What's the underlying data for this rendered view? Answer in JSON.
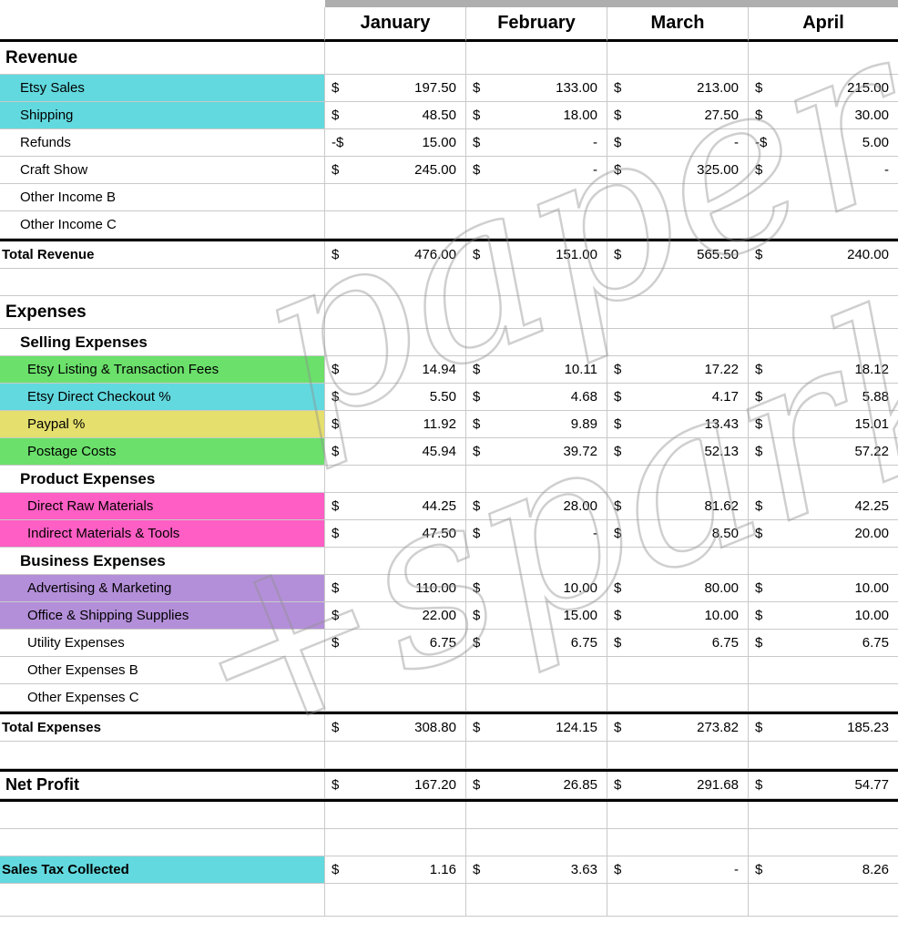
{
  "columns": [
    "January",
    "February",
    "March",
    "April"
  ],
  "colors": {
    "cyan": "#62d9de",
    "green": "#6be06b",
    "yellow": "#e5df6d",
    "pink": "#ff5ec4",
    "purple": "#b48fd9"
  },
  "watermark": {
    "line1": "paper",
    "line2": "+spark"
  },
  "rows": [
    {
      "label": "Revenue",
      "style": "section"
    },
    {
      "label": "Etsy Sales",
      "style": "item",
      "hl": "cyan",
      "cells": [
        [
          "$",
          "197.50"
        ],
        [
          "$",
          "133.00"
        ],
        [
          "$",
          "213.00"
        ],
        [
          "$",
          "215.00"
        ]
      ]
    },
    {
      "label": "Shipping",
      "style": "item",
      "hl": "cyan",
      "cells": [
        [
          "$",
          "48.50"
        ],
        [
          "$",
          "18.00"
        ],
        [
          "$",
          "27.50"
        ],
        [
          "$",
          "30.00"
        ]
      ]
    },
    {
      "label": "Refunds",
      "style": "item",
      "cells": [
        [
          "-$",
          "15.00"
        ],
        [
          "$",
          "-"
        ],
        [
          "$",
          "-"
        ],
        [
          "-$",
          "5.00"
        ]
      ]
    },
    {
      "label": "Craft Show",
      "style": "item",
      "cells": [
        [
          "$",
          "245.00"
        ],
        [
          "$",
          "-"
        ],
        [
          "$",
          "325.00"
        ],
        [
          "$",
          "-"
        ]
      ]
    },
    {
      "label": "Other Income B",
      "style": "item"
    },
    {
      "label": "Other Income C",
      "style": "item"
    },
    {
      "label": "Total Revenue",
      "style": "total",
      "top": true,
      "cells": [
        [
          "$",
          "476.00"
        ],
        [
          "$",
          "151.00"
        ],
        [
          "$",
          "565.50"
        ],
        [
          "$",
          "240.00"
        ]
      ]
    },
    {
      "label": "",
      "style": "blank"
    },
    {
      "label": "Expenses",
      "style": "section"
    },
    {
      "label": "Selling Expenses",
      "style": "subsection"
    },
    {
      "label": "Etsy Listing & Transaction Fees",
      "style": "item2",
      "hl": "green",
      "cells": [
        [
          "$",
          "14.94"
        ],
        [
          "$",
          "10.11"
        ],
        [
          "$",
          "17.22"
        ],
        [
          "$",
          "18.12"
        ]
      ]
    },
    {
      "label": "Etsy Direct Checkout %",
      "style": "item2",
      "hl": "cyan",
      "cells": [
        [
          "$",
          "5.50"
        ],
        [
          "$",
          "4.68"
        ],
        [
          "$",
          "4.17"
        ],
        [
          "$",
          "5.88"
        ]
      ]
    },
    {
      "label": "Paypal %",
      "style": "item2",
      "hl": "yellow",
      "cells": [
        [
          "$",
          "11.92"
        ],
        [
          "$",
          "9.89"
        ],
        [
          "$",
          "13.43"
        ],
        [
          "$",
          "15.01"
        ]
      ]
    },
    {
      "label": "Postage Costs",
      "style": "item2",
      "hl": "green",
      "cells": [
        [
          "$",
          "45.94"
        ],
        [
          "$",
          "39.72"
        ],
        [
          "$",
          "52.13"
        ],
        [
          "$",
          "57.22"
        ]
      ]
    },
    {
      "label": "Product Expenses",
      "style": "subsection"
    },
    {
      "label": "Direct Raw Materials",
      "style": "item2",
      "hl": "pink",
      "cells": [
        [
          "$",
          "44.25"
        ],
        [
          "$",
          "28.00"
        ],
        [
          "$",
          "81.62"
        ],
        [
          "$",
          "42.25"
        ]
      ]
    },
    {
      "label": "Indirect Materials & Tools",
      "style": "item2",
      "hl": "pink",
      "cells": [
        [
          "$",
          "47.50"
        ],
        [
          "$",
          "-"
        ],
        [
          "$",
          "8.50"
        ],
        [
          "$",
          "20.00"
        ]
      ]
    },
    {
      "label": "Business Expenses",
      "style": "subsection"
    },
    {
      "label": "Advertising & Marketing",
      "style": "item2",
      "hl": "purple",
      "cells": [
        [
          "$",
          "110.00"
        ],
        [
          "$",
          "10.00"
        ],
        [
          "$",
          "80.00"
        ],
        [
          "$",
          "10.00"
        ]
      ]
    },
    {
      "label": "Office & Shipping Supplies",
      "style": "item2",
      "hl": "purple",
      "cells": [
        [
          "$",
          "22.00"
        ],
        [
          "$",
          "15.00"
        ],
        [
          "$",
          "10.00"
        ],
        [
          "$",
          "10.00"
        ]
      ]
    },
    {
      "label": "Utility Expenses",
      "style": "item2",
      "cells": [
        [
          "$",
          "6.75"
        ],
        [
          "$",
          "6.75"
        ],
        [
          "$",
          "6.75"
        ],
        [
          "$",
          "6.75"
        ]
      ]
    },
    {
      "label": "Other Expenses B",
      "style": "item2"
    },
    {
      "label": "Other Expenses C",
      "style": "item2"
    },
    {
      "label": "Total Expenses",
      "style": "total",
      "top": true,
      "cells": [
        [
          "$",
          "308.80"
        ],
        [
          "$",
          "124.15"
        ],
        [
          "$",
          "273.82"
        ],
        [
          "$",
          "185.23"
        ]
      ]
    },
    {
      "label": "",
      "style": "blank"
    },
    {
      "label": "Net Profit",
      "style": "net",
      "top": true,
      "bottom": true,
      "cells": [
        [
          "$",
          "167.20"
        ],
        [
          "$",
          "26.85"
        ],
        [
          "$",
          "291.68"
        ],
        [
          "$",
          "54.77"
        ]
      ]
    },
    {
      "label": "",
      "style": "blank"
    },
    {
      "label": "",
      "style": "blank"
    },
    {
      "label": "Sales Tax Collected",
      "style": "tax",
      "hl": "cyan",
      "cells": [
        [
          "$",
          "1.16"
        ],
        [
          "$",
          "3.63"
        ],
        [
          "$",
          "-"
        ],
        [
          "$",
          "8.26"
        ]
      ]
    },
    {
      "label": "",
      "style": "blankTall"
    }
  ]
}
